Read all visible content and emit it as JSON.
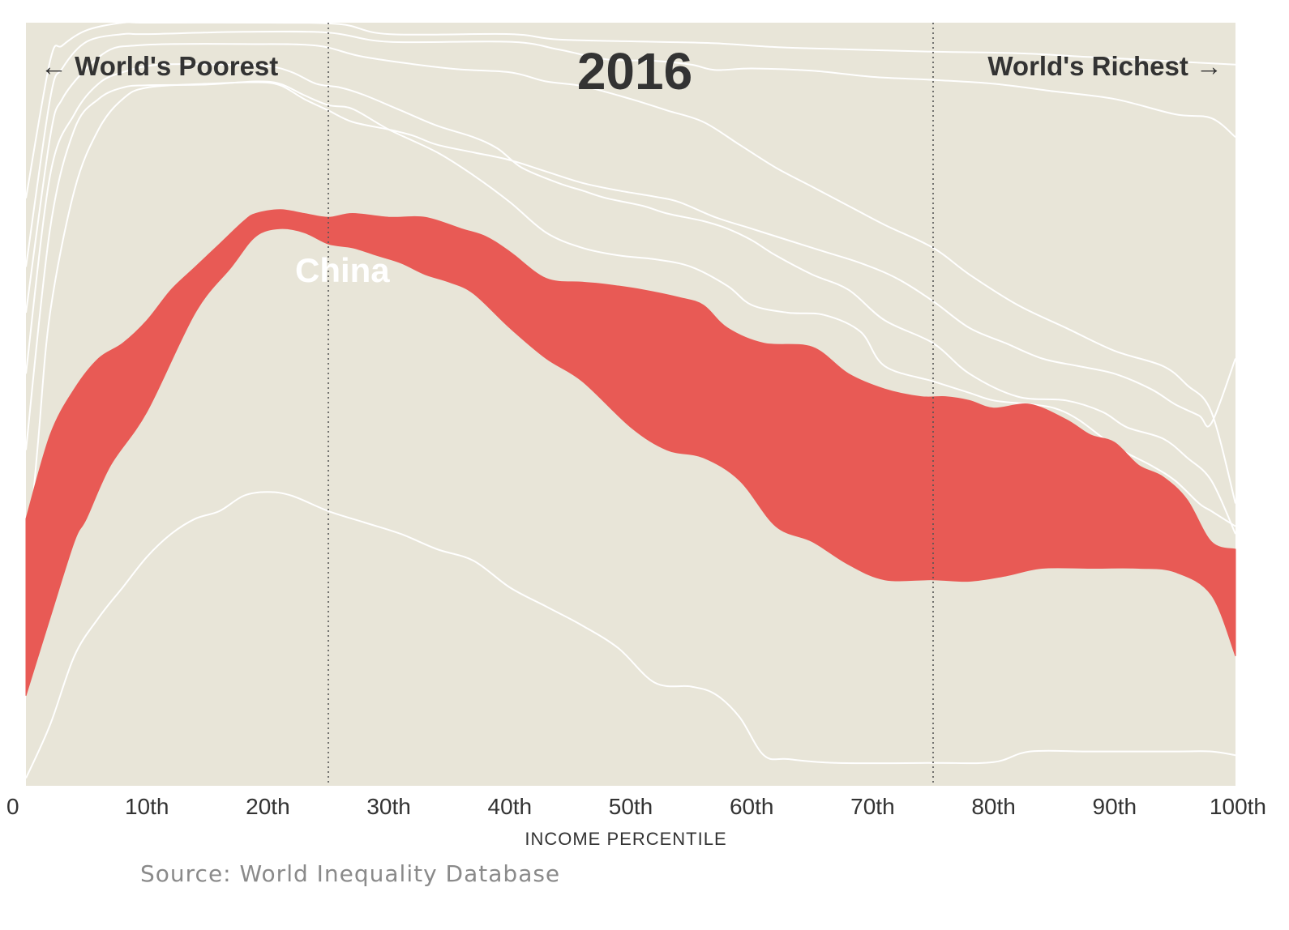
{
  "chart_data": {
    "type": "area",
    "title": "2016",
    "xlabel": "INCOME PERCENTILE",
    "ylabel": "",
    "xlim": [
      0,
      100
    ],
    "ylim": [
      0,
      100
    ],
    "x_ticks": [
      {
        "value": 0,
        "label": "0"
      },
      {
        "value": 10,
        "label": "10th"
      },
      {
        "value": 20,
        "label": "20th"
      },
      {
        "value": 30,
        "label": "30th"
      },
      {
        "value": 40,
        "label": "40th"
      },
      {
        "value": 50,
        "label": "50th"
      },
      {
        "value": 60,
        "label": "60th"
      },
      {
        "value": 70,
        "label": "70th"
      },
      {
        "value": 80,
        "label": "80th"
      },
      {
        "value": 90,
        "label": "90th"
      },
      {
        "value": 100,
        "label": "100th"
      }
    ],
    "reference_lines": [
      25,
      75
    ],
    "annotations": {
      "left": "← World's Poorest",
      "right": "World's Richest →"
    },
    "grid": false,
    "colors": {
      "background": "#e8e5d8",
      "highlight": "#e85a55",
      "boundary": "#ffffff",
      "reference": "#555555"
    },
    "highlighted_band": {
      "name": "China",
      "lower": [
        [
          0,
          11.8
        ],
        [
          2,
          22
        ],
        [
          4,
          32
        ],
        [
          5,
          35
        ],
        [
          7,
          42
        ],
        [
          10,
          49
        ],
        [
          14,
          62
        ],
        [
          17,
          68
        ],
        [
          19,
          72
        ],
        [
          21,
          73
        ],
        [
          23,
          72.5
        ],
        [
          25,
          71
        ],
        [
          27,
          70.5
        ],
        [
          29,
          69.5
        ],
        [
          31,
          68.5
        ],
        [
          33,
          67
        ],
        [
          35,
          66
        ],
        [
          37,
          64.5
        ],
        [
          40,
          60
        ],
        [
          43,
          56
        ],
        [
          46,
          53
        ],
        [
          50,
          47
        ],
        [
          53,
          44
        ],
        [
          56,
          43
        ],
        [
          59,
          40
        ],
        [
          62,
          34
        ],
        [
          65,
          32
        ],
        [
          68,
          29
        ],
        [
          71,
          27
        ],
        [
          75,
          27
        ],
        [
          78,
          26.8
        ],
        [
          81,
          27.5
        ],
        [
          84,
          28.5
        ],
        [
          88,
          28.5
        ],
        [
          92,
          28.5
        ],
        [
          95,
          28
        ],
        [
          98,
          25
        ],
        [
          100,
          17
        ]
      ],
      "upper": [
        [
          0,
          35
        ],
        [
          2,
          46
        ],
        [
          4,
          52
        ],
        [
          6,
          56
        ],
        [
          8,
          58
        ],
        [
          10,
          61
        ],
        [
          12,
          65
        ],
        [
          14,
          68
        ],
        [
          16,
          71
        ],
        [
          18,
          74
        ],
        [
          19,
          75
        ],
        [
          21,
          75.5
        ],
        [
          23,
          75
        ],
        [
          25,
          74.5
        ],
        [
          27,
          75
        ],
        [
          30,
          74.5
        ],
        [
          33,
          74.5
        ],
        [
          36,
          73
        ],
        [
          38,
          72
        ],
        [
          40,
          70
        ],
        [
          43,
          66.5
        ],
        [
          46,
          66
        ],
        [
          48,
          65.7
        ],
        [
          51,
          65
        ],
        [
          54,
          64
        ],
        [
          56,
          63
        ],
        [
          58,
          60
        ],
        [
          61,
          58
        ],
        [
          65,
          57.5
        ],
        [
          68,
          54
        ],
        [
          71,
          52
        ],
        [
          74,
          51
        ],
        [
          76,
          51
        ],
        [
          78,
          50.5
        ],
        [
          80,
          49.5
        ],
        [
          83,
          50
        ],
        [
          86,
          48
        ],
        [
          88,
          46
        ],
        [
          90,
          45
        ],
        [
          92,
          42
        ],
        [
          94,
          40.5
        ],
        [
          96,
          37.5
        ],
        [
          98,
          32
        ],
        [
          100,
          31
        ]
      ]
    },
    "other_bands": [
      {
        "points": [
          [
            0,
            1
          ],
          [
            2,
            8
          ],
          [
            4,
            17
          ],
          [
            6,
            22
          ],
          [
            8,
            26
          ],
          [
            10,
            30
          ],
          [
            12,
            33
          ],
          [
            14,
            35
          ],
          [
            16,
            36
          ],
          [
            18,
            38
          ],
          [
            20,
            38.5
          ],
          [
            22,
            38
          ],
          [
            25,
            36
          ],
          [
            28,
            34.5
          ],
          [
            31,
            33
          ],
          [
            34,
            31
          ],
          [
            37,
            29.5
          ],
          [
            40,
            26
          ],
          [
            43,
            23.5
          ],
          [
            46,
            21
          ],
          [
            49,
            18
          ],
          [
            52,
            13.5
          ],
          [
            55,
            13
          ],
          [
            57,
            12
          ],
          [
            59,
            9
          ],
          [
            61,
            4
          ],
          [
            63,
            3.5
          ],
          [
            67,
            3
          ],
          [
            75,
            3
          ],
          [
            80,
            3.1
          ],
          [
            83,
            4.5
          ],
          [
            88,
            4.5
          ],
          [
            95,
            4.5
          ],
          [
            98,
            4.5
          ],
          [
            100,
            4
          ]
        ]
      },
      {
        "points": [
          [
            0,
            77
          ],
          [
            2,
            95
          ],
          [
            3,
            97
          ],
          [
            5,
            99
          ],
          [
            8,
            100
          ],
          [
            10,
            100
          ],
          [
            20,
            100
          ],
          [
            26,
            99.8
          ],
          [
            30,
            98.5
          ],
          [
            40,
            98.5
          ],
          [
            44,
            97.8
          ],
          [
            52,
            97.5
          ],
          [
            57,
            97.3
          ],
          [
            62,
            96.8
          ],
          [
            68,
            96.5
          ],
          [
            75,
            96.2
          ],
          [
            82,
            96
          ],
          [
            88,
            95.5
          ],
          [
            100,
            94.5
          ]
        ]
      },
      {
        "points": [
          [
            0,
            68
          ],
          [
            2,
            90
          ],
          [
            3,
            94
          ],
          [
            5,
            97.5
          ],
          [
            8,
            98.5
          ],
          [
            10,
            98.5
          ],
          [
            18,
            98.8
          ],
          [
            25,
            98.7
          ],
          [
            30,
            97.5
          ],
          [
            40,
            97.5
          ],
          [
            44,
            96.5
          ],
          [
            48,
            95.2
          ],
          [
            52,
            95
          ],
          [
            55,
            94.5
          ],
          [
            57,
            93.8
          ],
          [
            60,
            94
          ],
          [
            65,
            93.7
          ],
          [
            70,
            92.9
          ],
          [
            75,
            92.5
          ],
          [
            80,
            92
          ],
          [
            85,
            91
          ],
          [
            90,
            90
          ],
          [
            95,
            88
          ],
          [
            98,
            87.5
          ],
          [
            100,
            85
          ]
        ]
      },
      {
        "points": [
          [
            0,
            62
          ],
          [
            2,
            85
          ],
          [
            3,
            90
          ],
          [
            5,
            94
          ],
          [
            7,
            96.5
          ],
          [
            9,
            97
          ],
          [
            12,
            97.2
          ],
          [
            18,
            97.2
          ],
          [
            24,
            97
          ],
          [
            28,
            95.5
          ],
          [
            35,
            94
          ],
          [
            40,
            93.5
          ],
          [
            43,
            92.3
          ],
          [
            46,
            91.7
          ],
          [
            50,
            90
          ],
          [
            53,
            88.5
          ],
          [
            56,
            87
          ],
          [
            59,
            84
          ],
          [
            62,
            81
          ],
          [
            65,
            78.5
          ],
          [
            68,
            76
          ],
          [
            71,
            73.5
          ],
          [
            75,
            70.5
          ],
          [
            78,
            67
          ],
          [
            82,
            63
          ],
          [
            86,
            60
          ],
          [
            90,
            57
          ],
          [
            94,
            55
          ],
          [
            96,
            52.5
          ],
          [
            98,
            49
          ],
          [
            100,
            37
          ]
        ]
      },
      {
        "points": [
          [
            0,
            54
          ],
          [
            2,
            80
          ],
          [
            4,
            88
          ],
          [
            6,
            92
          ],
          [
            8,
            93.5
          ],
          [
            11,
            94.5
          ],
          [
            16,
            94.5
          ],
          [
            20,
            94.3
          ],
          [
            22,
            93.5
          ],
          [
            24,
            92
          ],
          [
            26,
            91.5
          ],
          [
            28,
            90.5
          ],
          [
            31,
            88.5
          ],
          [
            34,
            86.5
          ],
          [
            37,
            85
          ],
          [
            39,
            83.5
          ],
          [
            41,
            81
          ],
          [
            44,
            79
          ],
          [
            46,
            78
          ],
          [
            48,
            77
          ],
          [
            51,
            76
          ],
          [
            53,
            75
          ],
          [
            56,
            74
          ],
          [
            58,
            73
          ],
          [
            60,
            71.5
          ],
          [
            62,
            69.5
          ],
          [
            65,
            67
          ],
          [
            68,
            65
          ],
          [
            71,
            61
          ],
          [
            75,
            58
          ],
          [
            78,
            54
          ],
          [
            82,
            51
          ],
          [
            86,
            50.5
          ],
          [
            89,
            49
          ],
          [
            91,
            47
          ],
          [
            94,
            45.5
          ],
          [
            96,
            43
          ],
          [
            98,
            40
          ],
          [
            100,
            33
          ]
        ]
      },
      {
        "points": [
          [
            0,
            44
          ],
          [
            2,
            73
          ],
          [
            4,
            86
          ],
          [
            6,
            90
          ],
          [
            8,
            91.5
          ],
          [
            10,
            91.8
          ],
          [
            15,
            91.9
          ],
          [
            19,
            92.3
          ],
          [
            21,
            92
          ],
          [
            23,
            90.5
          ],
          [
            25,
            89.2
          ],
          [
            27,
            88.7
          ],
          [
            30,
            86
          ],
          [
            34,
            83
          ],
          [
            37,
            80
          ],
          [
            40,
            76.5
          ],
          [
            43,
            72.5
          ],
          [
            46,
            70.5
          ],
          [
            49,
            69.5
          ],
          [
            52,
            69
          ],
          [
            55,
            68
          ],
          [
            58,
            65.5
          ],
          [
            60,
            63
          ],
          [
            63,
            62
          ],
          [
            66,
            61.7
          ],
          [
            69,
            59.5
          ],
          [
            71,
            55
          ],
          [
            75,
            53
          ],
          [
            78,
            51.5
          ],
          [
            80,
            50.5
          ],
          [
            83,
            50
          ],
          [
            85,
            49.5
          ],
          [
            87,
            48
          ],
          [
            90,
            44.5
          ],
          [
            93,
            42
          ],
          [
            95,
            40
          ],
          [
            97,
            37
          ],
          [
            98,
            36
          ],
          [
            100,
            34
          ]
        ]
      },
      {
        "points": [
          [
            0,
            27
          ],
          [
            1,
            45
          ],
          [
            2,
            62
          ],
          [
            4,
            78
          ],
          [
            6,
            86
          ],
          [
            8,
            90
          ],
          [
            10,
            91.5
          ],
          [
            15,
            92
          ],
          [
            19,
            92.2
          ],
          [
            21,
            91.8
          ],
          [
            23,
            90
          ],
          [
            25,
            88.5
          ],
          [
            27,
            87
          ],
          [
            30,
            86
          ],
          [
            32,
            85.2
          ],
          [
            34,
            84
          ],
          [
            37,
            83
          ],
          [
            40,
            82
          ],
          [
            43,
            80.5
          ],
          [
            46,
            79
          ],
          [
            49,
            78
          ],
          [
            52,
            77.2
          ],
          [
            54,
            76.5
          ],
          [
            57,
            74.5
          ],
          [
            60,
            73
          ],
          [
            63,
            71.5
          ],
          [
            66,
            70
          ],
          [
            69,
            68.5
          ],
          [
            72,
            66.5
          ],
          [
            75,
            63.5
          ],
          [
            78,
            60
          ],
          [
            81,
            58
          ],
          [
            84,
            56
          ],
          [
            87,
            55
          ],
          [
            90,
            54
          ],
          [
            93,
            52
          ],
          [
            95,
            50
          ],
          [
            97,
            48.5
          ],
          [
            98,
            47.5
          ],
          [
            100,
            56
          ]
        ]
      }
    ]
  },
  "labels": {
    "left_annotation": "← World's Poorest",
    "right_annotation": "World's Richest →",
    "year": "2016",
    "china": "China",
    "xlabel": "INCOME PERCENTILE",
    "source": "Source: World Inequality Database"
  }
}
